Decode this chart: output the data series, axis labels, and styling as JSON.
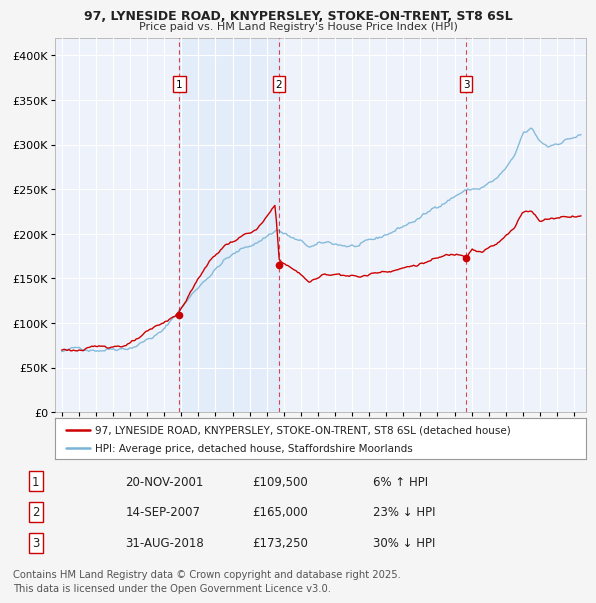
{
  "title1": "97, LYNESIDE ROAD, KNYPERSLEY, STOKE-ON-TRENT, ST8 6SL",
  "title2": "Price paid vs. HM Land Registry's House Price Index (HPI)",
  "legend_line1": "97, LYNESIDE ROAD, KNYPERSLEY, STOKE-ON-TRENT, ST8 6SL (detached house)",
  "legend_line2": "HPI: Average price, detached house, Staffordshire Moorlands",
  "sale1_date": "20-NOV-2001",
  "sale1_price": 109500,
  "sale1_pct": "6% ↑ HPI",
  "sale1_label": "1",
  "sale1_x": 2001.89,
  "sale2_date": "14-SEP-2007",
  "sale2_price": 165000,
  "sale2_pct": "23% ↓ HPI",
  "sale2_label": "2",
  "sale2_x": 2007.71,
  "sale3_date": "31-AUG-2018",
  "sale3_price": 173250,
  "sale3_pct": "30% ↓ HPI",
  "sale3_label": "3",
  "sale3_x": 2018.67,
  "hpi_color": "#7ab4d8",
  "price_color": "#cc0000",
  "vline_color": "#cc0000",
  "shade_color": "#d0e4f7",
  "plot_bg": "#eef3fb",
  "grid_color": "#ffffff",
  "fig_bg": "#f5f5f5",
  "copyright": "Contains HM Land Registry data © Crown copyright and database right 2025.\nThis data is licensed under the Open Government Licence v3.0."
}
